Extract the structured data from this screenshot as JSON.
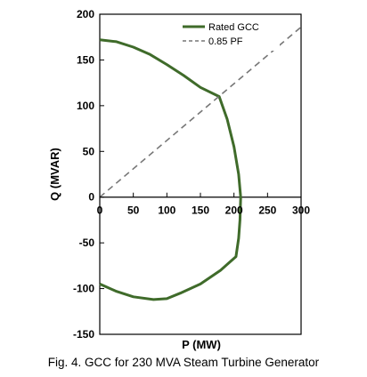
{
  "chart_data": {
    "type": "line",
    "xlabel": "P (MW)",
    "ylabel": "Q (MVAR)",
    "xlim": [
      0,
      300
    ],
    "ylim": [
      -150,
      200
    ],
    "xticks": [
      "0",
      "50",
      "100",
      "150",
      "200",
      "250",
      "300"
    ],
    "yticks": [
      "200",
      "150",
      "100",
      "50",
      "0",
      "-50",
      "-100",
      "-150"
    ],
    "grid": false,
    "legend_position": "top-right",
    "series": [
      {
        "name": "Rated GCC",
        "style": "solid",
        "color": "#3f6b2a",
        "points": [
          [
            0,
            172
          ],
          [
            25,
            170
          ],
          [
            50,
            164
          ],
          [
            75,
            156
          ],
          [
            100,
            145
          ],
          [
            125,
            133
          ],
          [
            150,
            120
          ],
          [
            178,
            110
          ],
          [
            190,
            85
          ],
          [
            200,
            55
          ],
          [
            207,
            25
          ],
          [
            210,
            0
          ],
          [
            209,
            -25
          ],
          [
            207,
            -45
          ],
          [
            203,
            -65
          ],
          [
            180,
            -80
          ],
          [
            150,
            -95
          ],
          [
            120,
            -105
          ],
          [
            100,
            -111
          ],
          [
            80,
            -112
          ],
          [
            50,
            -109
          ],
          [
            25,
            -103
          ],
          [
            0,
            -95
          ]
        ]
      },
      {
        "name": "0.85 PF",
        "style": "dashed",
        "color": "#777777",
        "points": [
          [
            0,
            0
          ],
          [
            300,
            186
          ]
        ]
      }
    ]
  },
  "caption": "Fig. 4.  GCC for 230 MVA Steam Turbine Generator"
}
